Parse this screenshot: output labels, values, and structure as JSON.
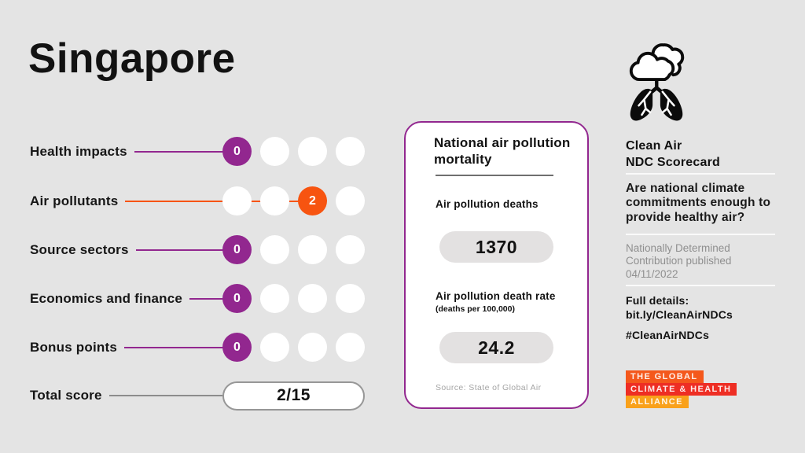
{
  "title": "Singapore",
  "colors": {
    "bg": "#E4E4E4",
    "purple": "#92278F",
    "orange": "#F75410",
    "logo_orange": "#F4581C",
    "logo_red": "#EE2E24",
    "logo_amber": "#F9A11B"
  },
  "scorecard": {
    "rows": [
      {
        "label": "Health impacts",
        "score": 0,
        "dots": 4,
        "color": "purple"
      },
      {
        "label": "Air pollutants",
        "score": 2,
        "dots": 4,
        "color": "orange"
      },
      {
        "label": "Source sectors",
        "score": 0,
        "dots": 4,
        "color": "purple"
      },
      {
        "label": "Economics and finance",
        "score": 0,
        "dots": 4,
        "color": "purple"
      },
      {
        "label": "Bonus points",
        "score": 0,
        "dots": 4,
        "color": "purple"
      }
    ],
    "total": {
      "label": "Total score",
      "value": "2/15"
    }
  },
  "mortality_card": {
    "title": "National air pollution mortality",
    "deaths_label": "Air pollution deaths",
    "deaths_value": "1370",
    "rate_label": "Air pollution death rate",
    "rate_sublabel": "(deaths per 100,000)",
    "rate_value": "24.2",
    "source": "Source: State of Global Air"
  },
  "info_panel": {
    "icon": "cloud-lungs-icon",
    "heading_line1": "Clean Air",
    "heading_line2": "NDC Scorecard",
    "question": "Are national climate commitments enough to provide healthy air?",
    "ndc_note": "Nationally Determined Contribution published 04/11/2022",
    "details_label": "Full details:",
    "details_link": "bit.ly/CleanAirNDCs",
    "hashtag": "#CleanAirNDCs",
    "logo_lines": [
      {
        "text": "THE GLOBAL",
        "bg_key": "logo_orange"
      },
      {
        "text": "CLIMATE & HEALTH",
        "bg_key": "logo_red"
      },
      {
        "text": "ALLIANCE",
        "bg_key": "logo_amber"
      }
    ]
  }
}
